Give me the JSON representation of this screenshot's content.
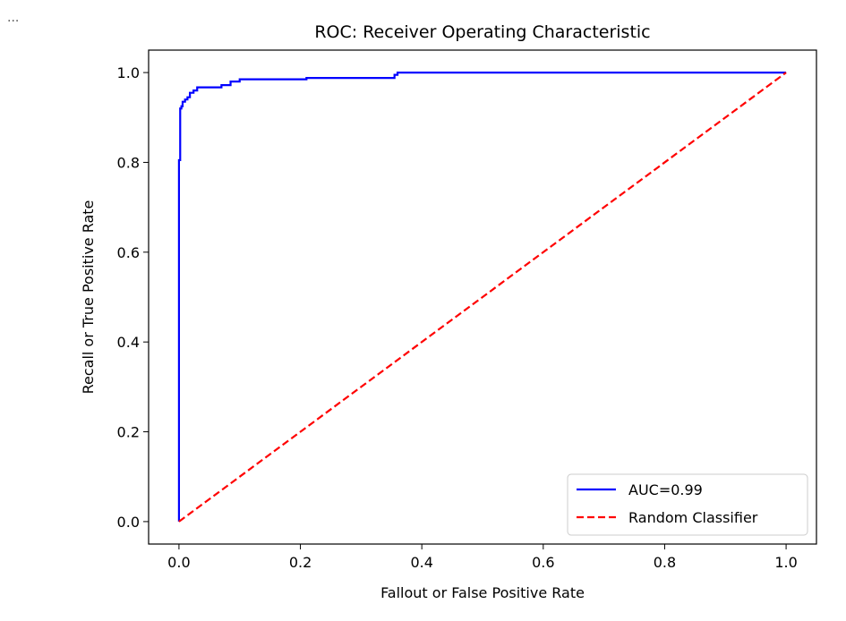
{
  "overflow_marker": "...",
  "chart_data": {
    "type": "line",
    "title": "ROC: Receiver Operating Characteristic",
    "xlabel": "Fallout or False Positive Rate",
    "ylabel": "Recall or True Positive Rate",
    "xlim": [
      -0.05,
      1.05
    ],
    "ylim": [
      -0.05,
      1.05
    ],
    "xticks": [
      "0.0",
      "0.2",
      "0.4",
      "0.6",
      "0.8",
      "1.0"
    ],
    "yticks": [
      "0.0",
      "0.2",
      "0.4",
      "0.6",
      "0.8",
      "1.0"
    ],
    "grid": false,
    "legend_position": "lower-right",
    "series": [
      {
        "name": "AUC=0.99",
        "color": "#0000ff",
        "style": "solid",
        "x": [
          0.0,
          0.0,
          0.0,
          0.0,
          0.002,
          0.002,
          0.004,
          0.004,
          0.006,
          0.006,
          0.01,
          0.01,
          0.014,
          0.014,
          0.018,
          0.018,
          0.024,
          0.024,
          0.03,
          0.03,
          0.07,
          0.07,
          0.085,
          0.085,
          0.1,
          0.1,
          0.21,
          0.21,
          0.355,
          0.355,
          0.36,
          0.36,
          1.0
        ],
        "y": [
          0.0,
          0.805,
          0.805,
          0.805,
          0.805,
          0.92,
          0.92,
          0.925,
          0.925,
          0.935,
          0.935,
          0.94,
          0.94,
          0.945,
          0.945,
          0.955,
          0.955,
          0.96,
          0.96,
          0.967,
          0.967,
          0.972,
          0.972,
          0.98,
          0.98,
          0.985,
          0.985,
          0.988,
          0.988,
          0.995,
          0.995,
          1.0,
          1.0
        ]
      },
      {
        "name": "Random Classifier",
        "color": "#ff0000",
        "style": "dashed",
        "x": [
          0.0,
          1.0
        ],
        "y": [
          0.0,
          1.0
        ]
      }
    ]
  }
}
